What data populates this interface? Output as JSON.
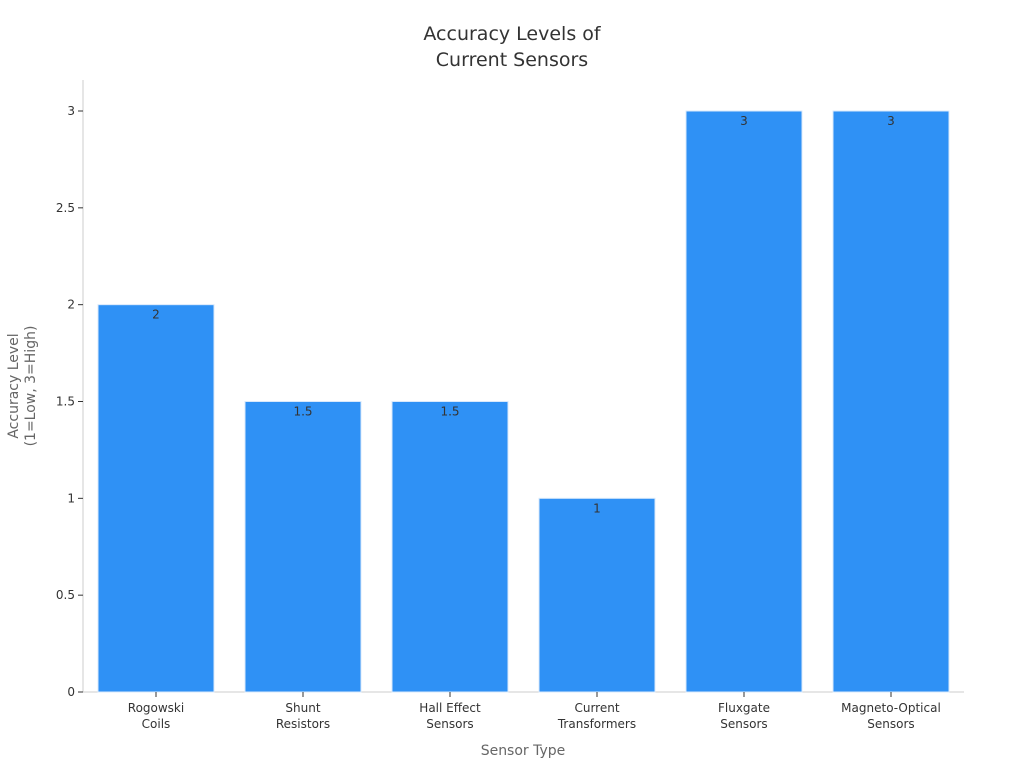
{
  "chart_data": {
    "type": "bar",
    "title_lines": [
      "Accuracy Levels of",
      "Current Sensors"
    ],
    "categories": [
      [
        "Rogowski",
        "Coils"
      ],
      [
        "Shunt",
        "Resistors"
      ],
      [
        "Hall Effect",
        "Sensors"
      ],
      [
        "Current",
        "Transformers"
      ],
      [
        "Fluxgate",
        "Sensors"
      ],
      [
        "Magneto-Optical",
        "Sensors"
      ]
    ],
    "values": [
      2,
      1.5,
      1.5,
      1,
      3,
      3
    ],
    "xlabel": "Sensor Type",
    "ylabel_lines": [
      "Accuracy Level",
      "(1=Low, 3=High)"
    ],
    "ylim": [
      0,
      3
    ],
    "yticks": [
      0,
      0.5,
      1,
      1.5,
      2,
      2.5,
      3
    ],
    "bar_color": "#2f91f5",
    "grid": false
  }
}
